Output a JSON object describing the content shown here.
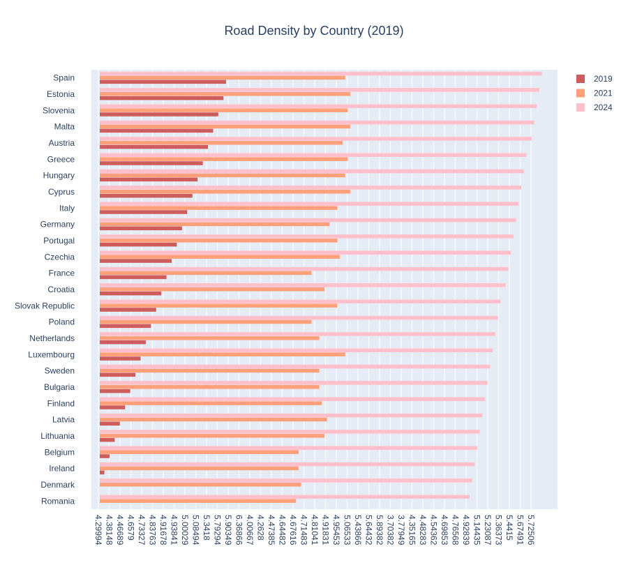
{
  "chart_data": {
    "type": "bar",
    "orientation": "horizontal",
    "title": "Road Density by Country (2019)",
    "xlabel": "",
    "ylabel": "",
    "categories": [
      "Spain",
      "Estonia",
      "Slovenia",
      "Malta",
      "Austria",
      "Greece",
      "Hungary",
      "Cyprus",
      "Italy",
      "Germany",
      "Portugal",
      "Czechia",
      "France",
      "Croatia",
      "Slovak Republic",
      "Poland",
      "Netherlands",
      "Luxembourg",
      "Sweden",
      "Bulgaria",
      "Finland",
      "Latvia",
      "Lithuania",
      "Belgium",
      "Ireland",
      "Denmark",
      "Romania"
    ],
    "series": [
      {
        "name": "2019",
        "color": "#cd5c5c",
        "values": [
          5.62,
          5.61,
          5.59,
          5.57,
          5.55,
          5.53,
          5.51,
          5.49,
          5.47,
          5.45,
          5.43,
          5.41,
          5.39,
          5.37,
          5.35,
          5.33,
          5.31,
          5.29,
          5.27,
          5.25,
          5.23,
          5.21,
          5.19,
          5.17,
          5.15,
          5.12,
          5.1
        ]
      },
      {
        "name": "2021",
        "color": "#ffa07a",
        "values": [
          6.08,
          6.1,
          6.09,
          6.1,
          6.07,
          6.09,
          6.08,
          6.1,
          6.05,
          6.02,
          6.05,
          6.06,
          5.95,
          6.0,
          6.05,
          5.95,
          5.98,
          6.08,
          5.98,
          5.98,
          5.99,
          6.01,
          6.0,
          5.9,
          5.9,
          5.91,
          5.89
        ]
      },
      {
        "name": "2024",
        "color": "#ffc0cb",
        "values": [
          6.84,
          6.83,
          6.82,
          6.81,
          6.8,
          6.78,
          6.77,
          6.76,
          6.75,
          6.74,
          6.73,
          6.72,
          6.71,
          6.7,
          6.68,
          6.67,
          6.66,
          6.65,
          6.64,
          6.63,
          6.62,
          6.61,
          6.6,
          6.59,
          6.58,
          6.57,
          6.56
        ]
      }
    ],
    "x_tick_labels": [
      "4.29994",
      "4.38148",
      "4.46689",
      "4.6579",
      "4.73327",
      "4.83763",
      "4.91678",
      "4.93841",
      "5.00029",
      "5.08494",
      "5.3418",
      "5.79294",
      "5.90349",
      "6.36866",
      "4.00667",
      "4.2628",
      "4.47385",
      "4.64482",
      "4.67616",
      "4.71483",
      "4.81041",
      "4.91831",
      "4.95453",
      "5.06533",
      "5.43866",
      "5.64432",
      "5.89382",
      "3.70382",
      "3.77949",
      "4.35165",
      "4.48283",
      "4.54362",
      "4.69853",
      "4.76568",
      "4.92839",
      "5.14435",
      "5.23087",
      "5.36373",
      "5.4415",
      "5.67491",
      "5.72506"
    ],
    "xlim": [
      5.1,
      6.9
    ],
    "grid": true,
    "legend_position": "top-right"
  }
}
